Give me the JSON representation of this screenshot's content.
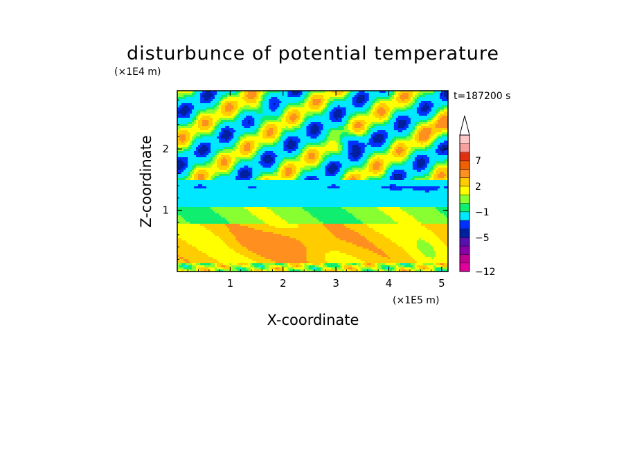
{
  "chart_data": {
    "type": "heatmap",
    "title": "disturbunce of potential temperature",
    "xlabel": "X-coordinate",
    "ylabel": "Z-coordinate",
    "x_unit": "(×1E5 m)",
    "y_unit": "(×1E4 m)",
    "time_label": "t=187200 s",
    "xlim": [
      0,
      5.12
    ],
    "ylim": [
      0,
      2.95
    ],
    "x_ticks": [
      1,
      2,
      3,
      4,
      5
    ],
    "y_ticks": [
      1,
      2
    ],
    "grid": false,
    "colorbar": {
      "levels": [
        -12,
        -10,
        -8,
        -6,
        -5,
        -4,
        -3,
        -1,
        0,
        1,
        2,
        3,
        5,
        7,
        9,
        11
      ],
      "tick_labels": [
        "−12",
        "−5",
        "−1",
        "2",
        "7"
      ],
      "tick_levels": [
        -12,
        -5,
        -1,
        2,
        7
      ],
      "colors": [
        "#e0009a",
        "#c00090",
        "#8a00a8",
        "#5a10b0",
        "#0020a0",
        "#0030ff",
        "#00e8ff",
        "#10ee70",
        "#88ff30",
        "#ffff00",
        "#ffcc00",
        "#ff9020",
        "#f06000",
        "#e03010",
        "#f6a0a0",
        "#ffc8c8"
      ],
      "extend_top": true
    },
    "regions": [
      {
        "z_range": [
          0.0,
          0.15
        ],
        "value": "mixed, ~0 to 2 with local +3",
        "note": "lowest layer, noisy near surface"
      },
      {
        "z_range": [
          0.15,
          0.75
        ],
        "value": 2.5,
        "note": "warm band, peak ~3-5 near x=2.0-2.3"
      },
      {
        "z_range": [
          0.75,
          1.05
        ],
        "value": 0.5,
        "note": "transition green-yellow"
      },
      {
        "z_range": [
          1.05,
          1.45
        ],
        "value": -1.5,
        "note": "cool cyan band with blue streaks near x=0.1, 1.0, 4.2, 5.0"
      },
      {
        "z_range": [
          1.45,
          2.95
        ],
        "value": "wavy alternating",
        "note": "tilted warm (orange) and cold (dark blue) cells; strongest cold -5 near x=3.0-3.4, z=2.1"
      }
    ]
  }
}
